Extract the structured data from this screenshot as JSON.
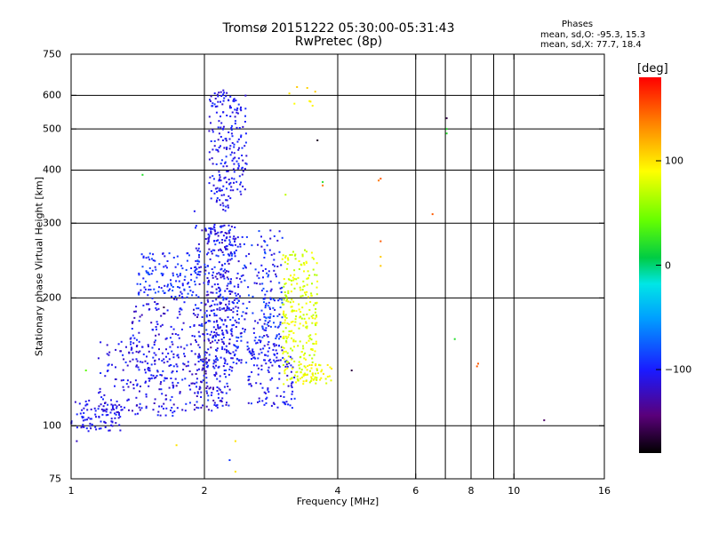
{
  "chart_data": {
    "type": "scatter",
    "title": "Tromsø 20151222 05:30:00-05:31:43",
    "subtitle": "RwPretec (8p)",
    "xlabel": "Frequency [MHz]",
    "ylabel": "Stationary phase Virtual Height [km]",
    "x_scale": "log",
    "y_scale": "log",
    "xlim": [
      1,
      16
    ],
    "ylim": [
      75,
      750
    ],
    "x_ticks": [
      1,
      2,
      4,
      6,
      8,
      10,
      16
    ],
    "x_tick_labels": [
      "1",
      "2",
      "4",
      "6",
      "8",
      "10",
      "16"
    ],
    "x_grid": [
      2,
      4,
      6,
      7,
      8,
      9,
      10
    ],
    "y_ticks": [
      75,
      100,
      200,
      300,
      400,
      500,
      600,
      750
    ],
    "y_tick_labels": [
      "75",
      "100",
      "200",
      "300",
      "400",
      "500",
      "600",
      "750"
    ],
    "y_grid": [
      100,
      200,
      300,
      400,
      500,
      600
    ],
    "grid": true,
    "stats": {
      "title": "Phases",
      "o_line": "mean, sd,O: -95.3, 15.3",
      "x_line": "mean, sd,X:  77.7, 18.4"
    },
    "colorbar": {
      "label": "[deg]",
      "range": [
        -180,
        180
      ],
      "ticks": [
        100,
        0,
        -100
      ],
      "tick_labels": [
        "100",
        "0",
        "−100"
      ],
      "colormap": "rainbow"
    },
    "clusters": [
      {
        "f": [
          1.0,
          1.3
        ],
        "h": [
          97,
          115
        ],
        "phase": [
          -120,
          -95
        ],
        "n": 90
      },
      {
        "f": [
          1.15,
          1.75
        ],
        "h": [
          105,
          160
        ],
        "phase": [
          -125,
          -90
        ],
        "n": 150
      },
      {
        "f": [
          1.35,
          2.2
        ],
        "h": [
          108,
          200
        ],
        "phase": [
          -125,
          -90
        ],
        "n": 240
      },
      {
        "f": [
          1.9,
          2.3
        ],
        "h": [
          110,
          300
        ],
        "phase": [
          -130,
          -85
        ],
        "n": 260
      },
      {
        "f": [
          2.0,
          2.4
        ],
        "h": [
          130,
          300
        ],
        "phase": [
          -120,
          -85
        ],
        "n": 160
      },
      {
        "f": [
          2.05,
          2.3
        ],
        "h": [
          320,
          620
        ],
        "phase": [
          -120,
          -90
        ],
        "n": 140
      },
      {
        "f": [
          2.3,
          2.5
        ],
        "h": [
          350,
          600
        ],
        "phase": [
          -120,
          -90
        ],
        "n": 80
      },
      {
        "f": [
          1.4,
          1.95
        ],
        "h": [
          200,
          255
        ],
        "phase": [
          -110,
          -80
        ],
        "n": 130
      },
      {
        "f": [
          2.2,
          3.0
        ],
        "h": [
          140,
          290
        ],
        "phase": [
          -120,
          -80
        ],
        "n": 220
      },
      {
        "f": [
          2.5,
          3.2
        ],
        "h": [
          110,
          160
        ],
        "phase": [
          -120,
          -90
        ],
        "n": 120
      },
      {
        "f": [
          2.7,
          3.0
        ],
        "h": [
          160,
          200
        ],
        "phase": [
          -110,
          -70
        ],
        "n": 40
      },
      {
        "f": [
          3.0,
          3.6
        ],
        "h": [
          125,
          260
        ],
        "phase": [
          65,
          95
        ],
        "n": 260
      },
      {
        "f": [
          3.2,
          3.9
        ],
        "h": [
          125,
          140
        ],
        "phase": [
          70,
          100
        ],
        "n": 50
      },
      {
        "f": [
          3.1,
          3.6
        ],
        "h": [
          540,
          630
        ],
        "phase": [
          80,
          110
        ],
        "n": 8
      }
    ],
    "outliers": [
      {
        "f": 1.03,
        "h": 92,
        "phase": -120
      },
      {
        "f": 1.08,
        "h": 135,
        "phase": 40
      },
      {
        "f": 1.45,
        "h": 390,
        "phase": 20
      },
      {
        "f": 1.62,
        "h": 190,
        "phase": -160
      },
      {
        "f": 1.73,
        "h": 90,
        "phase": 100
      },
      {
        "f": 1.9,
        "h": 320,
        "phase": -105
      },
      {
        "f": 2.28,
        "h": 83,
        "phase": -90
      },
      {
        "f": 2.35,
        "h": 92,
        "phase": 100
      },
      {
        "f": 2.35,
        "h": 78,
        "phase": 100
      },
      {
        "f": 3.6,
        "h": 470,
        "phase": -170
      },
      {
        "f": 3.7,
        "h": 375,
        "phase": 20
      },
      {
        "f": 3.7,
        "h": 368,
        "phase": 140
      },
      {
        "f": 3.05,
        "h": 350,
        "phase": 70
      },
      {
        "f": 4.3,
        "h": 135,
        "phase": -160
      },
      {
        "f": 5.0,
        "h": 382,
        "phase": 150
      },
      {
        "f": 4.95,
        "h": 378,
        "phase": 140
      },
      {
        "f": 5.0,
        "h": 272,
        "phase": 150
      },
      {
        "f": 5.0,
        "h": 250,
        "phase": 110
      },
      {
        "f": 5.0,
        "h": 238,
        "phase": 110
      },
      {
        "f": 6.55,
        "h": 315,
        "phase": 150
      },
      {
        "f": 7.05,
        "h": 530,
        "phase": -160
      },
      {
        "f": 7.05,
        "h": 500,
        "phase": 20
      },
      {
        "f": 7.05,
        "h": 488,
        "phase": 20
      },
      {
        "f": 7.35,
        "h": 160,
        "phase": 20
      },
      {
        "f": 8.3,
        "h": 140,
        "phase": 150
      },
      {
        "f": 8.25,
        "h": 138,
        "phase": 150
      },
      {
        "f": 11.7,
        "h": 103,
        "phase": -150
      }
    ]
  }
}
